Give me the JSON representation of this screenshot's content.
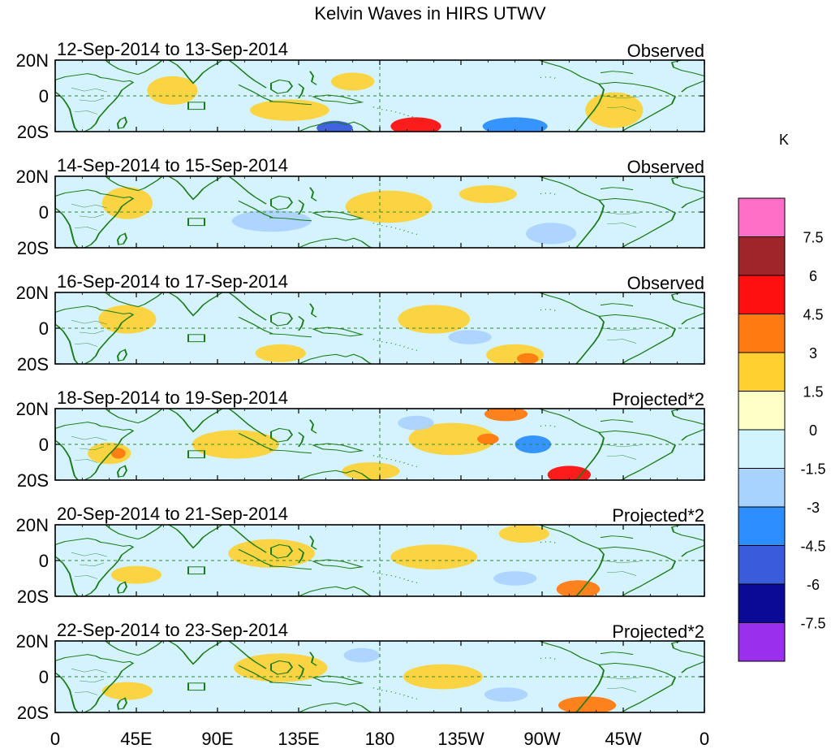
{
  "title": "Kelvin Waves in HIRS UTWV",
  "panels": [
    {
      "dates": "12-Sep-2014 to 13-Sep-2014",
      "status": "Observed"
    },
    {
      "dates": "14-Sep-2014 to 15-Sep-2014",
      "status": "Observed"
    },
    {
      "dates": "16-Sep-2014 to 17-Sep-2014",
      "status": "Observed"
    },
    {
      "dates": "18-Sep-2014 to 19-Sep-2014",
      "status": "Projected*2"
    },
    {
      "dates": "20-Sep-2014 to 21-Sep-2014",
      "status": "Projected*2"
    },
    {
      "dates": "22-Sep-2014 to 23-Sep-2014",
      "status": "Projected*2"
    }
  ],
  "lat_labels": [
    "20N",
    "0",
    "20S"
  ],
  "lon_labels": [
    "0",
    "45E",
    "90E",
    "135E",
    "180",
    "135W",
    "90W",
    "45W",
    "0"
  ],
  "colorbar": {
    "unit": "K",
    "levels": [
      "7.5",
      "6",
      "4.5",
      "3",
      "1.5",
      "0",
      "-1.5",
      "-3",
      "-4.5",
      "-6",
      "-7.5"
    ],
    "colors": [
      "#ff6ec7",
      "#a0252a",
      "#ff1010",
      "#ff7a10",
      "#ffd030",
      "#ffffc8",
      "#d2f4ff",
      "#a8d2ff",
      "#2c8eff",
      "#3a5bdc",
      "#0a0a96",
      "#9a30ee"
    ]
  },
  "map_colors": {
    "ocean": "#d4f3ff",
    "coast": "#1a7a1a",
    "guide": "#2a8a2a"
  },
  "anomalies": [
    [
      {
        "lon": 65,
        "lat": 3,
        "rx": 14,
        "ry": 8,
        "v": 1
      },
      {
        "lon": 130,
        "lat": -8,
        "rx": 22,
        "ry": 6,
        "v": 1
      },
      {
        "lon": 165,
        "lat": 8,
        "rx": 12,
        "ry": 5,
        "v": 1
      },
      {
        "lon": 155,
        "lat": -18,
        "rx": 10,
        "ry": 4,
        "v": -3
      },
      {
        "lon": 200,
        "lat": -17,
        "rx": 14,
        "ry": 5,
        "v": 3
      },
      {
        "lon": 255,
        "lat": -17,
        "rx": 18,
        "ry": 5,
        "v": -2
      },
      {
        "lon": 310,
        "lat": -8,
        "rx": 16,
        "ry": 10,
        "v": 1
      }
    ],
    [
      {
        "lon": 40,
        "lat": 5,
        "rx": 14,
        "ry": 9,
        "v": 1
      },
      {
        "lon": 120,
        "lat": -5,
        "rx": 22,
        "ry": 6,
        "v": -1
      },
      {
        "lon": 185,
        "lat": 3,
        "rx": 24,
        "ry": 9,
        "v": 1
      },
      {
        "lon": 240,
        "lat": 10,
        "rx": 16,
        "ry": 5,
        "v": 1
      },
      {
        "lon": 275,
        "lat": -12,
        "rx": 14,
        "ry": 6,
        "v": -1
      }
    ],
    [
      {
        "lon": 40,
        "lat": 5,
        "rx": 16,
        "ry": 8,
        "v": 1
      },
      {
        "lon": 125,
        "lat": -14,
        "rx": 14,
        "ry": 5,
        "v": 1
      },
      {
        "lon": 210,
        "lat": 5,
        "rx": 20,
        "ry": 8,
        "v": 1
      },
      {
        "lon": 255,
        "lat": -15,
        "rx": 16,
        "ry": 6,
        "v": 1
      },
      {
        "lon": 262,
        "lat": -17,
        "rx": 6,
        "ry": 3,
        "v": 2
      },
      {
        "lon": 230,
        "lat": -5,
        "rx": 12,
        "ry": 4,
        "v": -1
      }
    ],
    [
      {
        "lon": 30,
        "lat": -5,
        "rx": 12,
        "ry": 6,
        "v": 1
      },
      {
        "lon": 35,
        "lat": -5,
        "rx": 4,
        "ry": 3,
        "v": 2
      },
      {
        "lon": 100,
        "lat": 0,
        "rx": 24,
        "ry": 8,
        "v": 1
      },
      {
        "lon": 175,
        "lat": -15,
        "rx": 16,
        "ry": 5,
        "v": 1
      },
      {
        "lon": 220,
        "lat": 3,
        "rx": 24,
        "ry": 9,
        "v": 1
      },
      {
        "lon": 240,
        "lat": 3,
        "rx": 6,
        "ry": 3,
        "v": 2
      },
      {
        "lon": 250,
        "lat": 17,
        "rx": 12,
        "ry": 4,
        "v": 2
      },
      {
        "lon": 285,
        "lat": -17,
        "rx": 12,
        "ry": 5,
        "v": 3
      },
      {
        "lon": 265,
        "lat": 0,
        "rx": 10,
        "ry": 5,
        "v": -2
      },
      {
        "lon": 200,
        "lat": 12,
        "rx": 10,
        "ry": 4,
        "v": -1
      }
    ],
    [
      {
        "lon": 45,
        "lat": -8,
        "rx": 14,
        "ry": 5,
        "v": 1
      },
      {
        "lon": 120,
        "lat": 4,
        "rx": 24,
        "ry": 8,
        "v": 1
      },
      {
        "lon": 210,
        "lat": 2,
        "rx": 24,
        "ry": 7,
        "v": 1
      },
      {
        "lon": 260,
        "lat": 15,
        "rx": 14,
        "ry": 5,
        "v": 1
      },
      {
        "lon": 290,
        "lat": -16,
        "rx": 12,
        "ry": 5,
        "v": 2
      },
      {
        "lon": 255,
        "lat": -10,
        "rx": 12,
        "ry": 4,
        "v": -1
      }
    ],
    [
      {
        "lon": 40,
        "lat": -8,
        "rx": 14,
        "ry": 5,
        "v": 1
      },
      {
        "lon": 125,
        "lat": 5,
        "rx": 26,
        "ry": 8,
        "v": 1
      },
      {
        "lon": 215,
        "lat": 0,
        "rx": 22,
        "ry": 7,
        "v": 1
      },
      {
        "lon": 295,
        "lat": -16,
        "rx": 16,
        "ry": 5,
        "v": 2
      },
      {
        "lon": 250,
        "lat": -10,
        "rx": 12,
        "ry": 4,
        "v": -1
      },
      {
        "lon": 170,
        "lat": 12,
        "rx": 10,
        "ry": 4,
        "v": -1
      }
    ]
  ]
}
